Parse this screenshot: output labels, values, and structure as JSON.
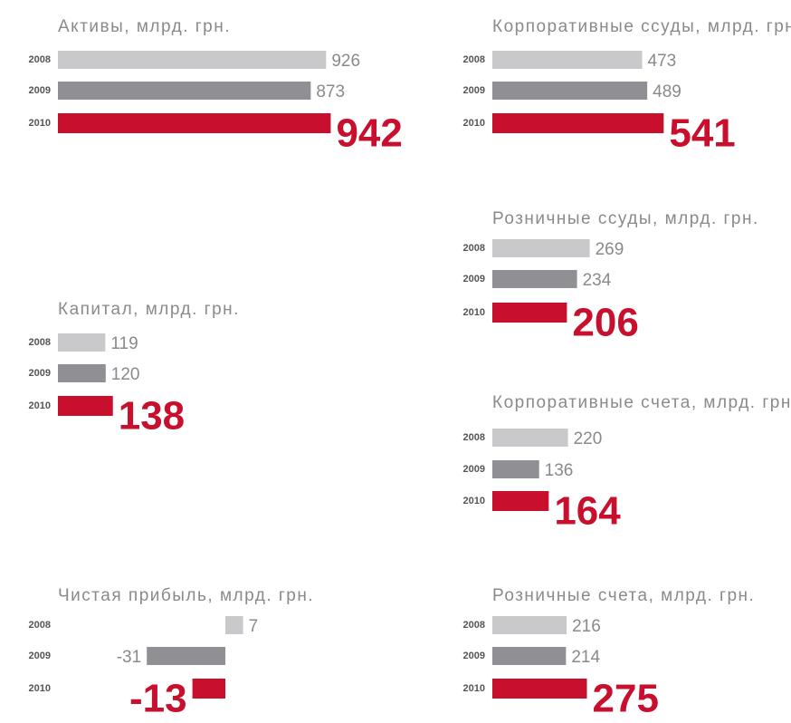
{
  "chart_data": [
    {
      "type": "bar",
      "title": "Активы, млрд. грн.",
      "categories": [
        "2008",
        "2009",
        "2010"
      ],
      "values": [
        926,
        873,
        942
      ],
      "colors": [
        "#c9c9cb",
        "#8f8f94",
        "#c8102e"
      ]
    },
    {
      "type": "bar",
      "title": "Капитал, млрд. грн.",
      "categories": [
        "2008",
        "2009",
        "2010"
      ],
      "values": [
        119,
        120,
        138
      ],
      "colors": [
        "#c9c9cb",
        "#8f8f94",
        "#c8102e"
      ]
    },
    {
      "type": "bar",
      "title": "Чистая прибыль, млрд. грн.",
      "categories": [
        "2008",
        "2009",
        "2010"
      ],
      "values": [
        7,
        -31,
        -13
      ],
      "colors": [
        "#c9c9cb",
        "#8f8f94",
        "#c8102e"
      ]
    },
    {
      "type": "bar",
      "title": "Корпоративные ссуды, млрд. грн.",
      "categories": [
        "2008",
        "2009",
        "2010"
      ],
      "values": [
        473,
        489,
        541
      ],
      "colors": [
        "#c9c9cb",
        "#8f8f94",
        "#c8102e"
      ]
    },
    {
      "type": "bar",
      "title": "Розничные ссуды, млрд. грн.",
      "categories": [
        "2008",
        "2009",
        "2010"
      ],
      "values": [
        269,
        234,
        206
      ],
      "colors": [
        "#c9c9cb",
        "#8f8f94",
        "#c8102e"
      ]
    },
    {
      "type": "bar",
      "title": "Корпоративные счета, млрд. грн.",
      "categories": [
        "2008",
        "2009",
        "2010"
      ],
      "values": [
        220,
        136,
        164
      ],
      "colors": [
        "#c9c9cb",
        "#8f8f94",
        "#c8102e"
      ]
    },
    {
      "type": "bar",
      "title": "Розничные счета, млрд. грн.",
      "categories": [
        "2008",
        "2009",
        "2010"
      ],
      "values": [
        216,
        214,
        275
      ],
      "colors": [
        "#c9c9cb",
        "#8f8f94",
        "#c8102e"
      ]
    }
  ]
}
